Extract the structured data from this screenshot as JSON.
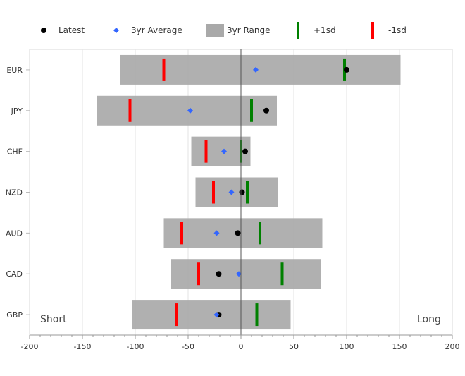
{
  "chart_data": {
    "type": "range-bar",
    "title": "",
    "xlabel": "",
    "ylabel": "",
    "xlim": [
      -200,
      200
    ],
    "xticks": [
      -200,
      -150,
      -100,
      -50,
      0,
      50,
      100,
      150,
      200
    ],
    "grid": true,
    "legend_position": "top",
    "legend": [
      {
        "key": "latest",
        "label": "Latest",
        "color": "#000000",
        "marker": "circle"
      },
      {
        "key": "avg",
        "label": "3yr Average",
        "color": "#3366ff",
        "marker": "diamond"
      },
      {
        "key": "range",
        "label": "3yr Range",
        "color": "#a9a9a9",
        "marker": "square"
      },
      {
        "key": "plus_sd",
        "label": "+1sd",
        "color": "#008000",
        "marker": "vline"
      },
      {
        "key": "minus_sd",
        "label": "-1sd",
        "color": "#ff0000",
        "marker": "vline"
      }
    ],
    "annotations": {
      "left": "Short",
      "right": "Long"
    },
    "categories": [
      "EUR",
      "JPY",
      "CHF",
      "NZD",
      "AUD",
      "CAD",
      "GBP"
    ],
    "series": [
      {
        "name": "3yr Range Min",
        "values": [
          -114,
          -136,
          -47,
          -43,
          -73,
          -66,
          -103
        ]
      },
      {
        "name": "3yr Range Max",
        "values": [
          151,
          34,
          9,
          35,
          77,
          76,
          47
        ]
      },
      {
        "name": "-1sd",
        "values": [
          -73,
          -105,
          -33,
          -26,
          -56,
          -40,
          -61
        ]
      },
      {
        "name": "+1sd",
        "values": [
          98,
          10,
          0,
          6,
          18,
          39,
          15
        ]
      },
      {
        "name": "3yr Average",
        "values": [
          14,
          -48,
          -16,
          -9,
          -23,
          -2,
          -23
        ]
      },
      {
        "name": "Latest",
        "values": [
          100,
          24,
          4,
          1,
          -3,
          -21,
          -21
        ]
      }
    ]
  }
}
